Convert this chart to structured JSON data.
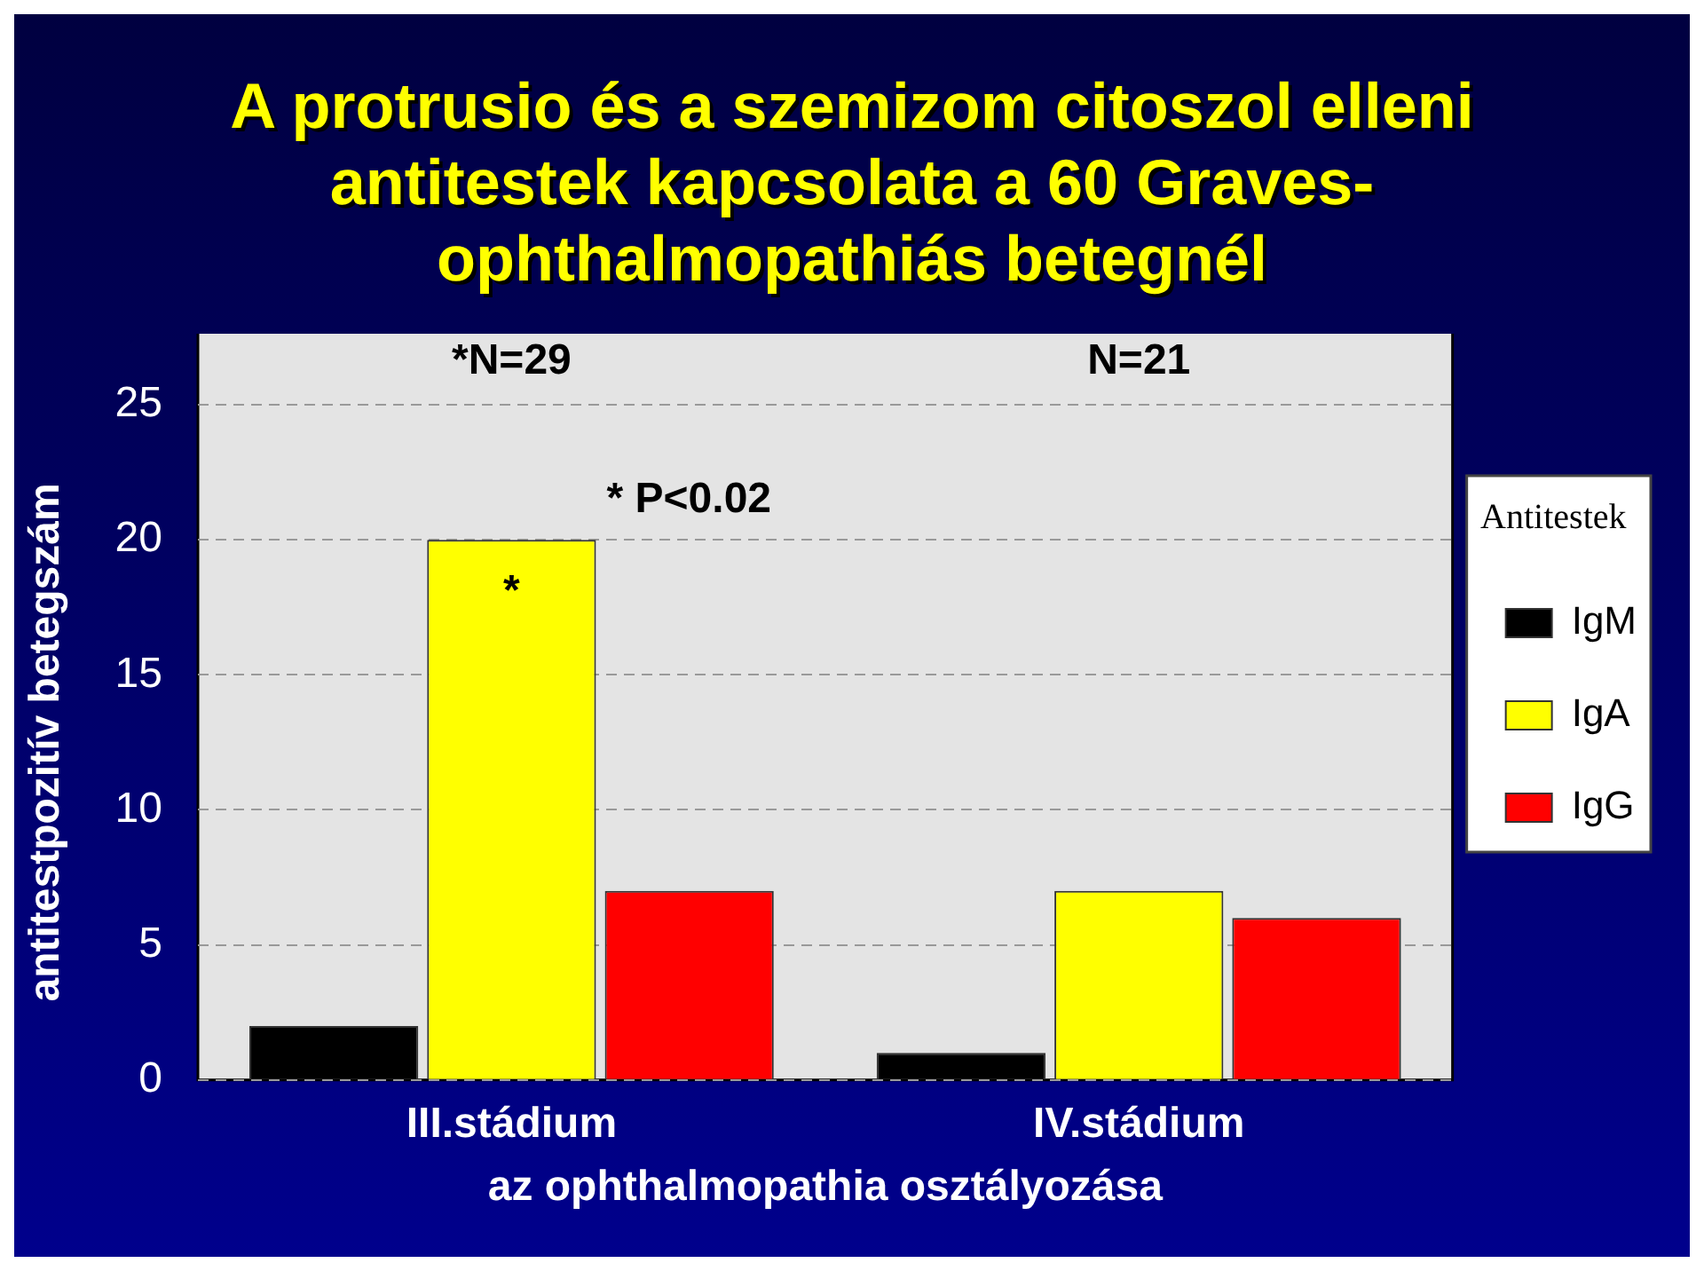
{
  "chart_data": {
    "type": "bar",
    "title": "A protrusio és a szemizom citoszol elleni antitestek kapcsolata a 60 Graves-ophthalmopathiás betegnél",
    "categories": [
      "III.stádium",
      "IV.stádium"
    ],
    "xlabel": "az ophthalmopathia osztályozása",
    "ylabel": "antitestpozitív betegszám",
    "legend_title": "Antitestek",
    "series": [
      {
        "name": "IgM",
        "color": "#000000",
        "values": [
          2,
          1
        ]
      },
      {
        "name": "IgA",
        "color": "#ffff00",
        "values": [
          20,
          7
        ]
      },
      {
        "name": "IgG",
        "color": "#ff0000",
        "values": [
          7,
          6
        ]
      }
    ],
    "ylim": [
      0,
      25
    ],
    "yticks": [
      0,
      5,
      10,
      15,
      20,
      25
    ],
    "grid": "y",
    "legend": "right",
    "annotations": [
      "*N=29",
      "N=21",
      "*",
      "* P<0.02"
    ]
  }
}
